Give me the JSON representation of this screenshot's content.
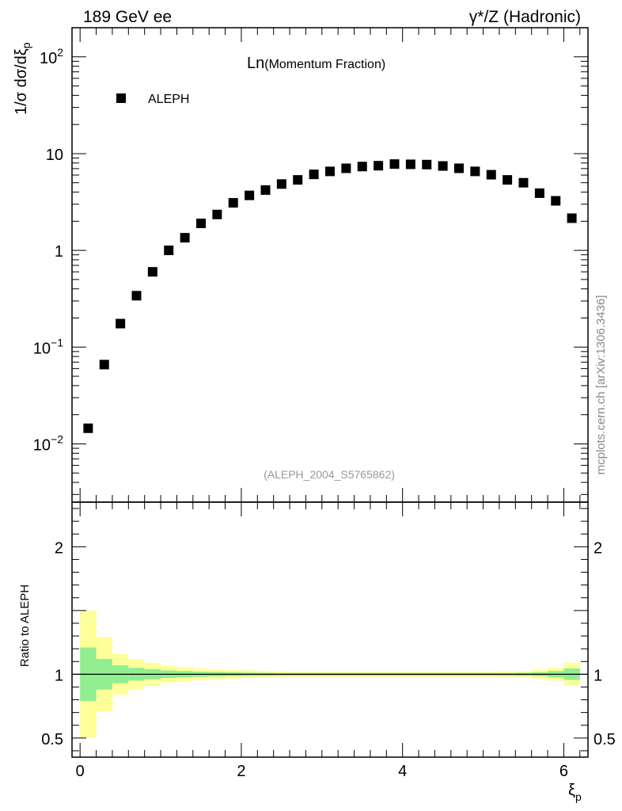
{
  "header": {
    "left": "189 GeV ee",
    "right": "γ*/Z (Hadronic)"
  },
  "side_label": "mcplots.cern.ch [arXiv:1306.3436]",
  "analysis_id": "(ALEPH_2004_S5765862)",
  "colors": {
    "band_inner": "#90ee90",
    "band_outer": "#ffff99",
    "marker": "#000000"
  },
  "chart_data": [
    {
      "type": "scatter",
      "title": "Ln(Momentum Fraction)",
      "title_main": "Ln",
      "title_sub": "(Momentum Fraction)",
      "ylabel": "1/σ dσ/dξp",
      "ylabel_main": "1/σ dσ/dξ",
      "ylabel_sub": "p",
      "yscale": "log",
      "ylim": [
        0.0025,
        200
      ],
      "xlim": [
        -0.1,
        6.3
      ],
      "y_ticks": [
        {
          "value": 0.01,
          "base": "10",
          "exp": "−2"
        },
        {
          "value": 0.1,
          "base": "10",
          "exp": "−1"
        },
        {
          "value": 1,
          "base": "1",
          "exp": ""
        },
        {
          "value": 10,
          "base": "10",
          "exp": ""
        },
        {
          "value": 100,
          "base": "10",
          "exp": "2"
        }
      ],
      "legend": {
        "position": "top-left"
      },
      "series": [
        {
          "name": "ALEPH",
          "marker": "square",
          "x": [
            0.1,
            0.3,
            0.5,
            0.7,
            0.9,
            1.1,
            1.3,
            1.5,
            1.7,
            1.9,
            2.1,
            2.3,
            2.5,
            2.7,
            2.9,
            3.1,
            3.3,
            3.5,
            3.7,
            3.9,
            4.1,
            4.3,
            4.5,
            4.7,
            4.9,
            5.1,
            5.3,
            5.5,
            5.7,
            5.9,
            6.1
          ],
          "y": [
            0.0145,
            0.066,
            0.175,
            0.34,
            0.6,
            1.0,
            1.35,
            1.9,
            2.35,
            3.1,
            3.7,
            4.2,
            4.85,
            5.35,
            6.1,
            6.55,
            7.05,
            7.35,
            7.5,
            7.8,
            7.75,
            7.7,
            7.45,
            7.05,
            6.55,
            6.05,
            5.35,
            5.0,
            3.9,
            3.25,
            2.15
          ]
        }
      ]
    },
    {
      "type": "area",
      "ylabel": "Ratio to ALEPH",
      "xlabel": "ξp",
      "xlabel_main": "ξ",
      "xlabel_sub": "p",
      "ylim": [
        0.35,
        2.35
      ],
      "xlim": [
        -0.1,
        6.3
      ],
      "x_ticks": [
        0,
        2,
        4,
        6
      ],
      "y_ticks": [
        {
          "value": 0.5,
          "label": "0.5"
        },
        {
          "value": 1,
          "label": "1"
        },
        {
          "value": 2,
          "label": "2"
        }
      ],
      "bins": [
        0,
        0.2,
        0.4,
        0.6,
        0.8,
        1.0,
        1.2,
        1.4,
        1.6,
        1.8,
        2.0,
        2.2,
        2.4,
        2.6,
        2.8,
        3.0,
        3.2,
        3.4,
        3.6,
        3.8,
        4.0,
        4.2,
        4.4,
        4.6,
        4.8,
        5.0,
        5.2,
        5.4,
        5.6,
        5.8,
        6.0,
        6.2
      ],
      "inner_band": {
        "lo": [
          0.79,
          0.88,
          0.93,
          0.95,
          0.96,
          0.97,
          0.975,
          0.98,
          0.982,
          0.985,
          0.987,
          0.988,
          0.99,
          0.99,
          0.99,
          0.99,
          0.99,
          0.99,
          0.99,
          0.99,
          0.99,
          0.99,
          0.99,
          0.99,
          0.99,
          0.99,
          0.99,
          0.988,
          0.985,
          0.975,
          0.955
        ],
        "hi": [
          1.21,
          1.12,
          1.07,
          1.05,
          1.04,
          1.03,
          1.025,
          1.02,
          1.018,
          1.015,
          1.013,
          1.012,
          1.01,
          1.01,
          1.01,
          1.01,
          1.01,
          1.01,
          1.01,
          1.01,
          1.01,
          1.01,
          1.01,
          1.01,
          1.01,
          1.01,
          1.01,
          1.012,
          1.015,
          1.025,
          1.045
        ]
      },
      "outer_band": {
        "lo": [
          0.5,
          0.71,
          0.84,
          0.88,
          0.91,
          0.935,
          0.945,
          0.955,
          0.96,
          0.965,
          0.97,
          0.975,
          0.978,
          0.98,
          0.98,
          0.98,
          0.98,
          0.98,
          0.98,
          0.98,
          0.98,
          0.98,
          0.98,
          0.98,
          0.98,
          0.98,
          0.978,
          0.975,
          0.965,
          0.95,
          0.91
        ],
        "hi": [
          1.5,
          1.29,
          1.16,
          1.12,
          1.09,
          1.065,
          1.055,
          1.045,
          1.04,
          1.035,
          1.03,
          1.025,
          1.022,
          1.02,
          1.02,
          1.02,
          1.02,
          1.02,
          1.02,
          1.02,
          1.02,
          1.02,
          1.02,
          1.02,
          1.02,
          1.02,
          1.022,
          1.025,
          1.035,
          1.05,
          1.09
        ]
      },
      "reference_line": 1
    }
  ]
}
